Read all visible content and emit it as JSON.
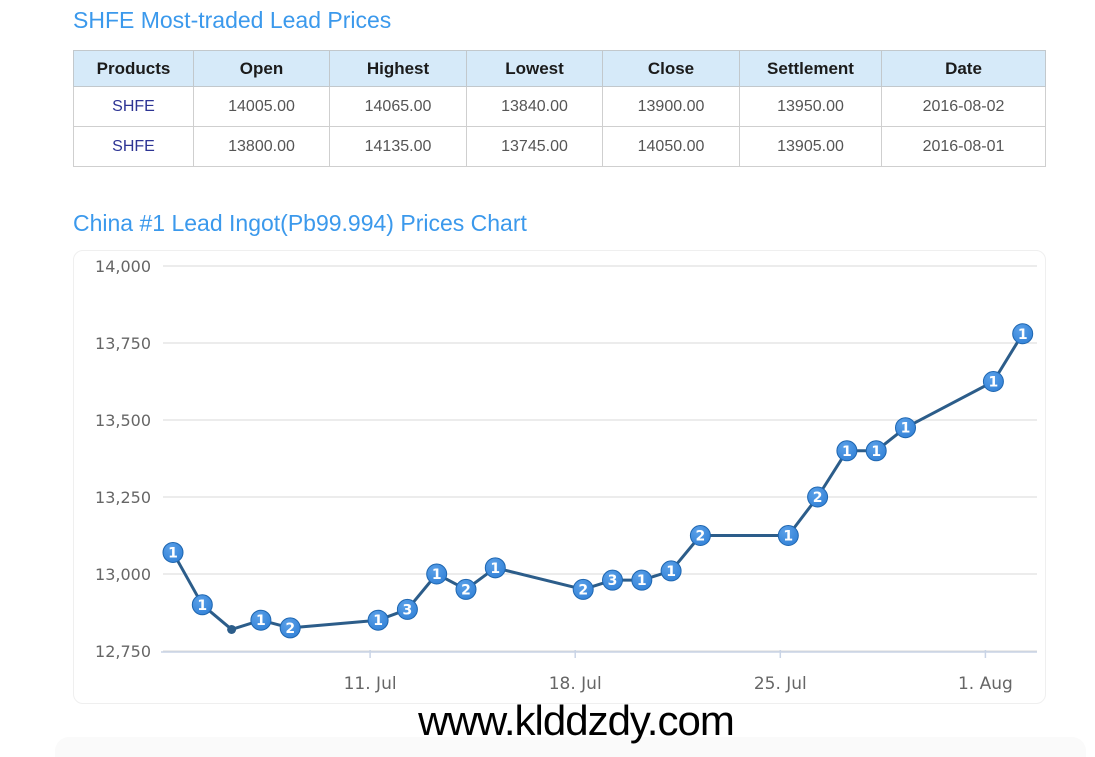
{
  "page": {
    "table_title": "SHFE Most-traded Lead Prices",
    "chart_title": "China #1 Lead Ingot(Pb99.994) Prices Chart",
    "watermark": "www.klddzdy.com"
  },
  "prices_table": {
    "columns": [
      "Products",
      "Open",
      "Highest",
      "Lowest",
      "Close",
      "Settlement",
      "Date"
    ],
    "rows": [
      {
        "product": "SHFE",
        "open": "14005.00",
        "highest": "14065.00",
        "lowest": "13840.00",
        "close": "13900.00",
        "settlement": "13950.00",
        "date": "2016-08-02"
      },
      {
        "product": "SHFE",
        "open": "13800.00",
        "highest": "14135.00",
        "lowest": "13745.00",
        "close": "14050.00",
        "settlement": "13905.00",
        "date": "2016-08-01"
      }
    ]
  },
  "chart_data": {
    "type": "line",
    "title": "China #1 Lead Ingot(Pb99.994) Prices Chart",
    "xlabel": "",
    "ylabel": "",
    "ylim": [
      12750,
      14000
    ],
    "grid": true,
    "legend": "none",
    "x": [
      "2016-07-04",
      "2016-07-05",
      "2016-07-06",
      "2016-07-07",
      "2016-07-08",
      "2016-07-11",
      "2016-07-12",
      "2016-07-13",
      "2016-07-14",
      "2016-07-15",
      "2016-07-18",
      "2016-07-19",
      "2016-07-20",
      "2016-07-21",
      "2016-07-22",
      "2016-07-25",
      "2016-07-26",
      "2016-07-27",
      "2016-07-28",
      "2016-07-29",
      "2016-08-01",
      "2016-08-02"
    ],
    "values": [
      13070,
      12900,
      12820,
      12850,
      12825,
      12850,
      12885,
      13000,
      12950,
      13020,
      12950,
      12980,
      12980,
      13010,
      13125,
      13125,
      13250,
      13400,
      13400,
      13475,
      13625,
      13780
    ],
    "point_labels": [
      "1",
      "1",
      null,
      "1",
      "2",
      "1",
      "3",
      "1",
      "2",
      "1",
      "2",
      "3",
      "1",
      "1",
      "2",
      "1",
      "2",
      "1",
      "1",
      "1",
      "1",
      "1"
    ],
    "yticks": [
      {
        "v": 12750,
        "label": "12,750"
      },
      {
        "v": 13000,
        "label": "13,000"
      },
      {
        "v": 13250,
        "label": "13,250"
      },
      {
        "v": 13500,
        "label": "13,500"
      },
      {
        "v": 13750,
        "label": "13,750"
      },
      {
        "v": 14000,
        "label": "14,000"
      }
    ],
    "xticks": [
      {
        "date": "2016-07-11",
        "label": "11. Jul"
      },
      {
        "date": "2016-07-18",
        "label": "18. Jul"
      },
      {
        "date": "2016-07-25",
        "label": "25. Jul"
      },
      {
        "date": "2016-08-01",
        "label": "1. Aug"
      }
    ],
    "colors": {
      "line": "#2c5d8a",
      "marker_fill": "#2e7ed5",
      "marker_fill_light": "#5aa0e8",
      "marker_stroke": "#1e66b0",
      "marker_text": "#ffffff",
      "grid": "#d8d8d8",
      "axis_line": "#c9d4e6",
      "axis_label": "#666666",
      "title_accent": "#3b99ec"
    }
  }
}
